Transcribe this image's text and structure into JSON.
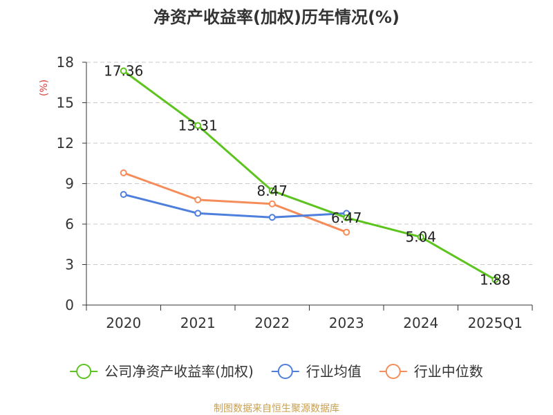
{
  "chart_data": {
    "type": "line",
    "title": "净资产收益率(加权)历年情况(%)",
    "ylabel": "(%)",
    "xlabel": "",
    "categories": [
      "2020",
      "2021",
      "2022",
      "2023",
      "2024",
      "2025Q1"
    ],
    "ylim": [
      0,
      18
    ],
    "yticks": [
      0,
      3,
      6,
      9,
      12,
      15,
      18
    ],
    "grid": true,
    "legend_position": "bottom",
    "series": [
      {
        "name": "公司净资产收益率(加权)",
        "color": "#5cc31f",
        "values": [
          17.36,
          13.31,
          8.47,
          6.47,
          5.04,
          1.88
        ],
        "labels": [
          "17.36",
          "13.31",
          "8.47",
          "6.47",
          "5.04",
          "1.88"
        ]
      },
      {
        "name": "行业均值",
        "color": "#4f7fdc",
        "values": [
          8.2,
          6.8,
          6.5,
          6.8,
          null,
          null
        ]
      },
      {
        "name": "行业中位数",
        "color": "#f58d5a",
        "values": [
          9.8,
          7.8,
          7.5,
          5.4,
          null,
          null
        ]
      }
    ]
  },
  "source": "制图数据来自恒生聚源数据库"
}
